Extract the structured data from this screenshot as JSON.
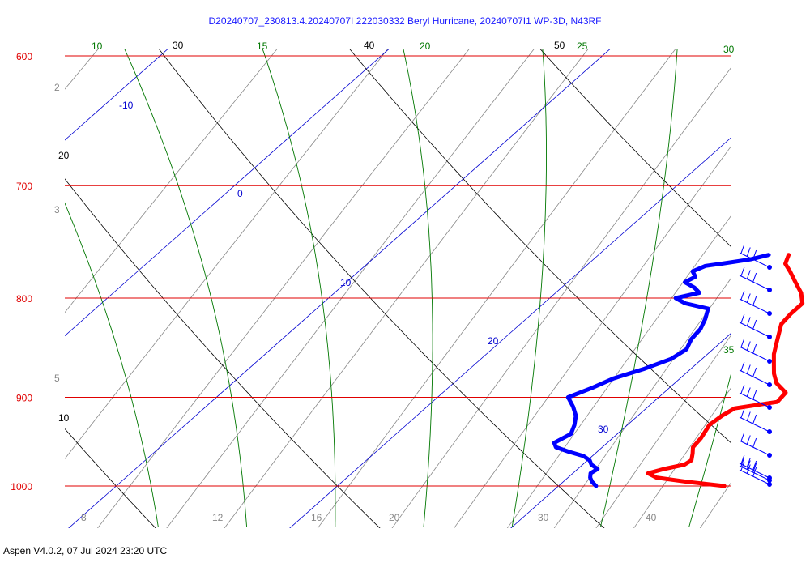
{
  "header": {
    "title": "D20240707_230813.4.20240707I 222030332 Beryl Hurricane, 20240707I1 WP-3D, N43RF"
  },
  "footer": {
    "text": "Aspen V4.0.2, 07 Jul 2024  23:20 UTC"
  },
  "colors": {
    "isobar": "#e00000",
    "isotherm": "#0000d0",
    "dry_adiabat": "#000000",
    "moist_adiabat": "#007700",
    "mixing_ratio": "#888888",
    "temperature_trace": "#ff0000",
    "dewpoint_trace": "#0000ff",
    "wind_barb": "#0000ff"
  },
  "chart_data": {
    "type": "line",
    "subtype": "skew-t log-p diagram",
    "pressure_axis": {
      "unit": "hPa",
      "range": [
        600,
        1000
      ],
      "log_scale": true,
      "tick_labels": [
        "600",
        "700",
        "800",
        "900",
        "1000"
      ]
    },
    "isotherm_labels": [
      "-10",
      "0",
      "10",
      "20",
      "30"
    ],
    "dry_adiabat_labels": [
      "10",
      "20",
      "30",
      "40",
      "50"
    ],
    "moist_adiabat_labels": [
      "10",
      "15",
      "20",
      "25",
      "30",
      "35"
    ],
    "mixing_ratio_labels": [
      "2",
      "3",
      "5",
      "8",
      "12",
      "16",
      "20",
      "30",
      "40"
    ],
    "series": [
      {
        "key": "temperature",
        "points": [
          [
            1000,
            27.5
          ],
          [
            995,
            25.6
          ],
          [
            990,
            24.0
          ],
          [
            985,
            23.4
          ],
          [
            980,
            23.9
          ],
          [
            975,
            24.6
          ],
          [
            970,
            24.7
          ],
          [
            962,
            24.4
          ],
          [
            955,
            24.1
          ],
          [
            945,
            24.0
          ],
          [
            940,
            23.9
          ],
          [
            930,
            23.7
          ],
          [
            920,
            23.8
          ],
          [
            912,
            24.0
          ],
          [
            905,
            25.6
          ],
          [
            895,
            25.5
          ],
          [
            885,
            24.6
          ],
          [
            875,
            24.0
          ],
          [
            865,
            23.5
          ],
          [
            855,
            23.0
          ],
          [
            845,
            22.6
          ],
          [
            835,
            22.2
          ],
          [
            825,
            21.8
          ],
          [
            815,
            21.7
          ],
          [
            805,
            21.7
          ],
          [
            795,
            21.1
          ],
          [
            785,
            20.3
          ],
          [
            775,
            19.5
          ],
          [
            768,
            18.9
          ],
          [
            760,
            18.6
          ]
        ]
      },
      {
        "key": "dewpoint",
        "points": [
          [
            1000,
            21.7
          ],
          [
            995,
            21.3
          ],
          [
            990,
            21.0
          ],
          [
            985,
            20.8
          ],
          [
            980,
            20.9
          ],
          [
            975,
            20.4
          ],
          [
            970,
            20.1
          ],
          [
            965,
            19.6
          ],
          [
            960,
            18.7
          ],
          [
            955,
            17.9
          ],
          [
            950,
            17.6
          ],
          [
            940,
            17.9
          ],
          [
            930,
            17.6
          ],
          [
            920,
            17.2
          ],
          [
            910,
            16.6
          ],
          [
            900,
            15.9
          ],
          [
            890,
            16.5
          ],
          [
            880,
            17.0
          ],
          [
            870,
            17.9
          ],
          [
            860,
            18.6
          ],
          [
            850,
            18.8
          ],
          [
            840,
            18.5
          ],
          [
            830,
            18.4
          ],
          [
            820,
            18.1
          ],
          [
            810,
            17.7
          ],
          [
            805,
            16.4
          ],
          [
            800,
            15.7
          ],
          [
            795,
            16.5
          ],
          [
            790,
            16.0
          ],
          [
            785,
            15.3
          ],
          [
            780,
            15.5
          ],
          [
            775,
            15.1
          ],
          [
            770,
            15.4
          ],
          [
            768,
            16.0
          ],
          [
            764,
            17.1
          ],
          [
            760,
            17.7
          ]
        ]
      }
    ],
    "wind_profile": [
      {
        "barbs": 3
      },
      {
        "barbs": 3
      },
      {
        "barbs": 3
      },
      {
        "barbs": 3
      },
      {
        "barbs": 3
      },
      {
        "barbs": 3
      },
      {
        "barbs": 3
      },
      {
        "barbs": 3
      },
      {
        "barbs": 3
      },
      {
        "barbs": 3
      },
      {
        "barbs": 3
      },
      {
        "barbs": 3
      }
    ]
  }
}
